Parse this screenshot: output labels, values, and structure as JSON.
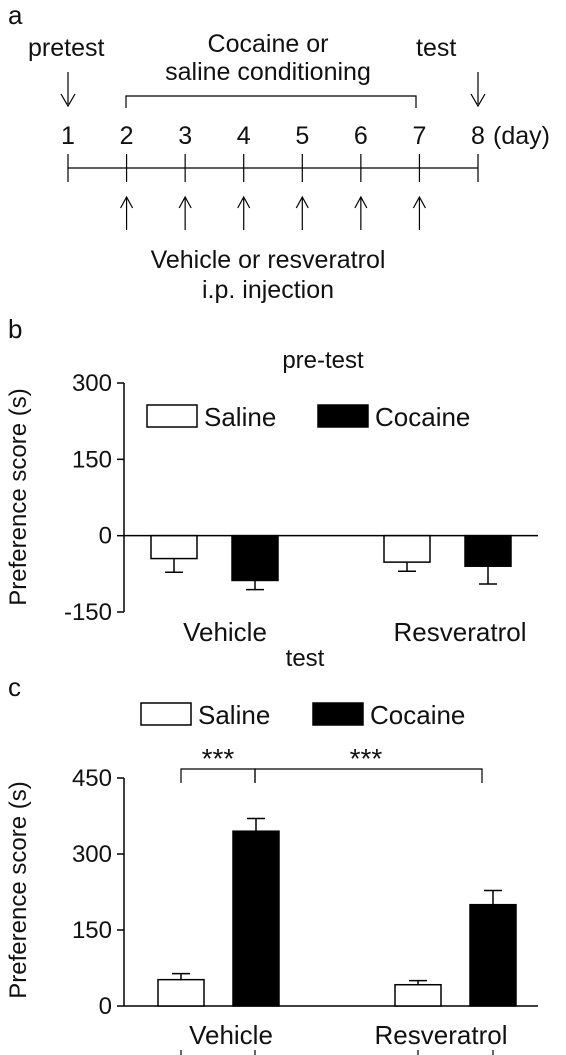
{
  "panel_a": {
    "label": "a",
    "pretest": "pretest",
    "test": "test",
    "conditioning_line1": "Cocaine or",
    "conditioning_line2": "saline conditioning",
    "days": [
      "1",
      "2",
      "3",
      "4",
      "5",
      "6",
      "7",
      "8"
    ],
    "day_unit": "(day)",
    "injection_line1": "Vehicle or resveratrol",
    "injection_line2": "i.p. injection"
  },
  "chart_data": [
    {
      "type": "bar",
      "panel_label": "b",
      "title": "pre-test",
      "ylabel": "Preference score (s)",
      "xlabel": "",
      "ylim": [
        -150,
        300
      ],
      "yticks": [
        -150,
        0,
        150,
        300
      ],
      "categories": [
        "Vehicle",
        "Resveratrol"
      ],
      "series": [
        {
          "name": "Saline",
          "color": "#ffffff",
          "values": [
            -45,
            -52
          ],
          "errors": [
            27,
            18
          ]
        },
        {
          "name": "Cocaine",
          "color": "#000000",
          "values": [
            -88,
            -60
          ],
          "errors": [
            18,
            35
          ]
        }
      ],
      "legend": "top"
    },
    {
      "type": "bar",
      "panel_label": "c",
      "title": "test",
      "ylabel": "Preference score (s)",
      "xlabel": "",
      "ylim": [
        0,
        450
      ],
      "yticks": [
        0,
        150,
        300,
        450
      ],
      "categories": [
        "Vehicle",
        "Resveratrol"
      ],
      "series": [
        {
          "name": "Saline",
          "color": "#ffffff",
          "values": [
            52,
            42
          ],
          "errors": [
            12,
            8
          ]
        },
        {
          "name": "Cocaine",
          "color": "#000000",
          "values": [
            345,
            200
          ],
          "errors": [
            25,
            28
          ]
        }
      ],
      "legend": "top",
      "significance": [
        "***",
        "***"
      ]
    }
  ]
}
